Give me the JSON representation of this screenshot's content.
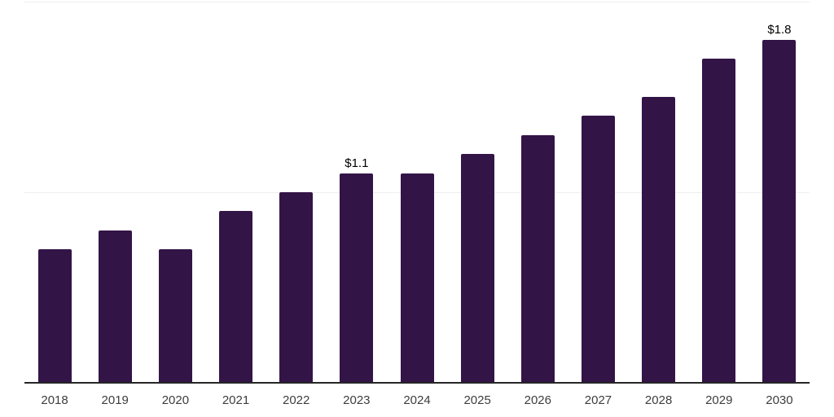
{
  "chart_data": {
    "type": "bar",
    "title": "",
    "xlabel": "",
    "ylabel": "",
    "categories": [
      "2018",
      "2019",
      "2020",
      "2021",
      "2022",
      "2023",
      "2024",
      "2025",
      "2026",
      "2027",
      "2028",
      "2029",
      "2030"
    ],
    "values": [
      0.7,
      0.8,
      0.7,
      0.9,
      1.0,
      1.1,
      1.1,
      1.2,
      1.3,
      1.4,
      1.5,
      1.7,
      1.8
    ],
    "annotations": [
      {
        "category": "2023",
        "index": 5,
        "text": "$1.1"
      },
      {
        "category": "2030",
        "index": 12,
        "text": "$1.8"
      }
    ],
    "ylim": [
      0,
      2
    ],
    "gridline_values": [
      1.0,
      2.0
    ],
    "grid": true,
    "legend": false,
    "y_tick_labels_visible": false
  },
  "colors": {
    "bar": "#331447",
    "gridline": "#efefef",
    "axis_line": "#262626",
    "tick_label": "#3d3d3d",
    "value_label": "#000000",
    "background": "#ffffff"
  }
}
